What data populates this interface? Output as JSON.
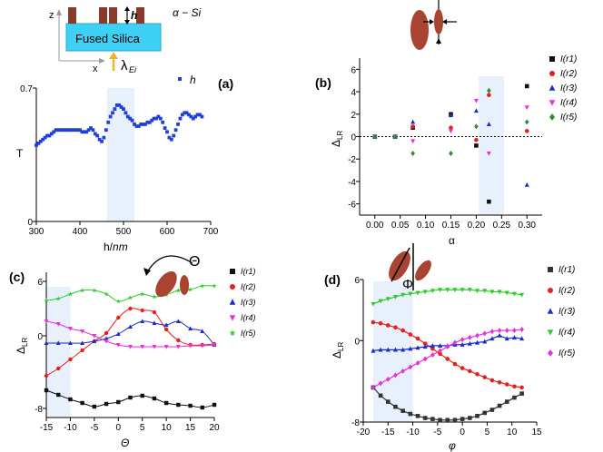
{
  "schematic": {
    "material_label": "α − Si",
    "substrate_label": "Fused Silica",
    "height_label": "h",
    "source_label": "λ",
    "source_sub": "Ei",
    "axis_z": "z",
    "axis_x": "x"
  },
  "chart_data": [
    {
      "panel": "(a)",
      "type": "scatter",
      "xlabel_main": "h/",
      "xlabel_italic": "nm",
      "ylabel": "T",
      "xlim": [
        300,
        700
      ],
      "ylim": [
        0,
        0.7
      ],
      "xticks": [
        "300",
        "400",
        "500",
        "600",
        "700"
      ],
      "yticks": [
        "0",
        "0.7"
      ],
      "highlight_x": [
        462,
        525
      ],
      "series": [
        {
          "name": "h",
          "color": "#1f3fd8",
          "x": [
            300,
            305,
            310,
            315,
            320,
            325,
            330,
            335,
            340,
            345,
            350,
            355,
            360,
            365,
            370,
            375,
            380,
            385,
            390,
            395,
            400,
            405,
            410,
            415,
            420,
            425,
            430,
            435,
            440,
            445,
            450,
            455,
            460,
            465,
            470,
            475,
            480,
            485,
            490,
            495,
            500,
            505,
            510,
            515,
            520,
            525,
            530,
            535,
            540,
            545,
            550,
            555,
            560,
            565,
            570,
            575,
            580,
            585,
            590,
            595,
            600,
            605,
            610,
            615,
            620,
            625,
            630,
            635,
            640,
            645,
            650,
            655,
            660,
            665,
            670,
            675,
            680
          ],
          "y": [
            0.4,
            0.41,
            0.42,
            0.43,
            0.44,
            0.45,
            0.45,
            0.46,
            0.47,
            0.48,
            0.48,
            0.48,
            0.48,
            0.48,
            0.48,
            0.48,
            0.48,
            0.48,
            0.48,
            0.48,
            0.48,
            0.47,
            0.47,
            0.47,
            0.48,
            0.49,
            0.48,
            0.46,
            0.45,
            0.43,
            0.42,
            0.44,
            0.48,
            0.52,
            0.55,
            0.57,
            0.59,
            0.61,
            0.61,
            0.6,
            0.59,
            0.57,
            0.55,
            0.54,
            0.53,
            0.51,
            0.5,
            0.5,
            0.51,
            0.51,
            0.51,
            0.52,
            0.52,
            0.53,
            0.54,
            0.54,
            0.55,
            0.54,
            0.52,
            0.49,
            0.47,
            0.44,
            0.43,
            0.45,
            0.48,
            0.51,
            0.54,
            0.56,
            0.57,
            0.57,
            0.56,
            0.55,
            0.54,
            0.55,
            0.56,
            0.56,
            0.55
          ]
        }
      ]
    },
    {
      "panel": "(b)",
      "type": "scatter",
      "xlabel": "α",
      "ylabel": "Δ",
      "ylabel_sub": "LR",
      "xlim": [
        -0.03,
        0.33
      ],
      "ylim": [
        -7,
        7
      ],
      "xticks": [
        "0.00",
        "0.05",
        "0.10",
        "0.15",
        "0.20",
        "0.25",
        "0.30"
      ],
      "yticks": [
        "-6",
        "-4",
        "-2",
        "0",
        "2",
        "4",
        "6"
      ],
      "highlight_x": [
        0.205,
        0.255
      ],
      "zero_line": true,
      "x": [
        0.0,
        0.04,
        0.075,
        0.15,
        0.2,
        0.225,
        0.3
      ],
      "series": [
        {
          "name": "I(r1)",
          "color": "#111111",
          "marker": "square",
          "values": [
            0,
            0,
            0.8,
            2.0,
            -0.8,
            -5.8,
            4.5
          ]
        },
        {
          "name": "I(r2)",
          "color": "#e8201c",
          "marker": "circle",
          "values": [
            0,
            0,
            0.9,
            0.8,
            -0.3,
            3.7,
            0.5
          ]
        },
        {
          "name": "I(r3)",
          "color": "#1a2ccf",
          "marker": "triangle",
          "values": [
            0,
            0,
            1.3,
            1.9,
            2.3,
            1.1,
            -4.3
          ]
        },
        {
          "name": "I(r4)",
          "color": "#e830d8",
          "marker": "tridown",
          "values": [
            0,
            0,
            -0.4,
            0.5,
            3.2,
            -1.5,
            2.6
          ]
        },
        {
          "name": "I(r5)",
          "color": "#2e8b2e",
          "marker": "diamond",
          "values": [
            0,
            0,
            -1.5,
            -1.5,
            0.9,
            4.1,
            1.3
          ]
        }
      ]
    },
    {
      "panel": "(c)",
      "type": "scatter",
      "xlabel": "Θ",
      "ylabel": "Δ",
      "ylabel_sub": "LR",
      "angle_label": "Θ",
      "xlim": [
        -15,
        20
      ],
      "ylim": [
        -9,
        7
      ],
      "xticks": [
        "-15",
        "-10",
        "-5",
        "0",
        "5",
        "10",
        "15",
        "20"
      ],
      "yticks": [
        "-8",
        "0",
        "6"
      ],
      "highlight_x": [
        -15,
        -10
      ],
      "x": [
        -15,
        -12.5,
        -10,
        -7.5,
        -5,
        -2.5,
        0,
        2.5,
        5,
        7.5,
        10,
        12.5,
        15,
        17.5,
        20
      ],
      "series": [
        {
          "name": "I(r1)",
          "color": "#111111",
          "marker": "square",
          "values": [
            -6.0,
            -6.5,
            -7.0,
            -7.4,
            -7.8,
            -7.5,
            -7.3,
            -6.8,
            -6.6,
            -6.9,
            -7.4,
            -7.6,
            -7.7,
            -7.9,
            -7.6
          ]
        },
        {
          "name": "I(r2)",
          "color": "#e8201c",
          "marker": "circle",
          "values": [
            -4.4,
            -3.6,
            -2.6,
            -1.6,
            -0.6,
            0.3,
            2.0,
            3.0,
            2.8,
            2.6,
            0.7,
            -0.5,
            -1.0,
            -1.0,
            -0.9
          ]
        },
        {
          "name": "I(r3)",
          "color": "#1a2ccf",
          "marker": "triangle",
          "values": [
            -0.8,
            -0.8,
            -0.8,
            -0.8,
            -0.6,
            -0.3,
            0.2,
            1.0,
            1.6,
            1.4,
            1.2,
            1.6,
            0.8,
            0.5,
            -1.0
          ]
        },
        {
          "name": "I(r4)",
          "color": "#e830d8",
          "marker": "tridown",
          "values": [
            1.6,
            1.3,
            0.8,
            0.5,
            0.0,
            -0.6,
            -1.0,
            -1.2,
            -1.2,
            -1.2,
            -1.2,
            -1.2,
            -1.1,
            -1.1,
            -1.0
          ]
        },
        {
          "name": "I(r5)",
          "color": "#2ecc2e",
          "marker": "star",
          "values": [
            3.9,
            4.1,
            4.6,
            5.0,
            5.0,
            4.6,
            3.8,
            4.2,
            4.6,
            4.3,
            4.5,
            5.0,
            5.1,
            5.5,
            5.5
          ]
        }
      ]
    },
    {
      "panel": "(d)",
      "type": "line",
      "xlabel": "φ",
      "ylabel": "Δ",
      "ylabel_sub": "LR",
      "angle_label": "Φ",
      "xlim": [
        -20,
        15
      ],
      "ylim": [
        -8,
        6
      ],
      "xticks": [
        "-20",
        "-15",
        "-10",
        "-5",
        "0",
        "5",
        "10",
        "15"
      ],
      "yticks": [
        "-8",
        "0",
        "6"
      ],
      "highlight_x": [
        -18,
        -10
      ],
      "x": [
        -18,
        -16.5,
        -15,
        -13.5,
        -12,
        -10.5,
        -9,
        -7.5,
        -6,
        -4.5,
        -3,
        -1.5,
        0,
        1.5,
        3,
        4.5,
        6,
        7.5,
        9,
        10.5,
        12
      ],
      "series": [
        {
          "name": "I(r1)",
          "color": "#333333",
          "marker": "square",
          "values": [
            -4.6,
            -5.4,
            -6.0,
            -6.5,
            -6.9,
            -7.2,
            -7.4,
            -7.6,
            -7.7,
            -7.8,
            -7.8,
            -7.8,
            -7.7,
            -7.6,
            -7.4,
            -7.1,
            -6.8,
            -6.4,
            -6.0,
            -5.6,
            -5.2
          ]
        },
        {
          "name": "I(r2)",
          "color": "#e8201c",
          "marker": "circle",
          "values": [
            1.8,
            1.7,
            1.5,
            1.3,
            1.0,
            0.6,
            0.2,
            -0.3,
            -0.8,
            -1.3,
            -1.8,
            -2.3,
            -2.7,
            -3.0,
            -3.3,
            -3.6,
            -3.9,
            -4.1,
            -4.3,
            -4.5,
            -4.6
          ]
        },
        {
          "name": "I(r3)",
          "color": "#1a2ccf",
          "marker": "triangle",
          "values": [
            -1.0,
            -0.9,
            -0.9,
            -0.9,
            -0.9,
            -0.8,
            -0.7,
            -0.6,
            -0.5,
            -0.5,
            -0.5,
            -0.4,
            -0.4,
            -0.3,
            -0.2,
            -0.1,
            0.2,
            0.5,
            0.2,
            0.3,
            0.2
          ]
        },
        {
          "name": "I(r4)",
          "color": "#2ecc2e",
          "marker": "tridown",
          "values": [
            3.6,
            3.9,
            4.1,
            4.3,
            4.5,
            4.6,
            4.7,
            4.8,
            4.9,
            5.0,
            5.0,
            5.0,
            5.0,
            5.0,
            4.9,
            4.9,
            4.8,
            4.8,
            4.7,
            4.6,
            4.5
          ]
        },
        {
          "name": "I(r5)",
          "color": "#e830d8",
          "marker": "diamond",
          "values": [
            -4.6,
            -4.2,
            -3.8,
            -3.4,
            -3.0,
            -2.6,
            -2.2,
            -1.8,
            -1.4,
            -1.0,
            -0.6,
            -0.2,
            0.1,
            0.3,
            0.5,
            0.7,
            0.9,
            1.0,
            1.0,
            1.0,
            1.1
          ]
        }
      ]
    }
  ]
}
